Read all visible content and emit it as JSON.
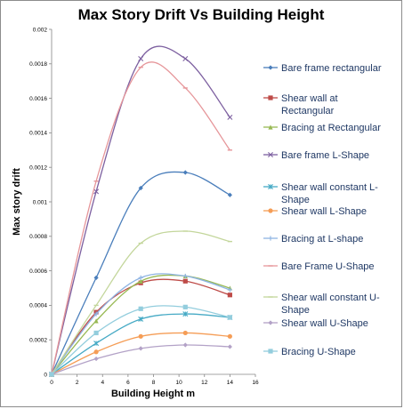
{
  "chart_data": {
    "type": "scatter",
    "title": "Max Story Drift Vs Building Height",
    "xlabel": "Building Height m",
    "ylabel": "Max story drift",
    "xlim": [
      0,
      16
    ],
    "ylim": [
      0,
      0.002
    ],
    "x_ticks": [
      "0",
      "2",
      "4",
      "6",
      "8",
      "10",
      "12",
      "14",
      "16"
    ],
    "y_ticks": [
      "0",
      "0.0002",
      "0.0004",
      "0.0006",
      "0.0008",
      "0.001",
      "0.0012",
      "0.0014",
      "0.0016",
      "0.0018",
      "0.002"
    ],
    "x_tick_values": [
      0,
      2,
      4,
      6,
      8,
      10,
      12,
      14,
      16
    ],
    "y_tick_values": [
      0,
      0.0002,
      0.0004,
      0.0006,
      0.0008,
      0.001,
      0.0012,
      0.0014,
      0.0016,
      0.0018,
      0.002
    ],
    "smooth_lines": true,
    "legend_position": "right",
    "x": [
      0,
      3.5,
      7,
      10.5,
      14
    ],
    "series": [
      {
        "name": "Bare frame rectangular",
        "color": "#4a7ebb",
        "marker": "diamond",
        "values": [
          0,
          0.00056,
          0.00108,
          0.00117,
          0.00104
        ]
      },
      {
        "name": "Shear wall at Rectangular",
        "color": "#be4b48",
        "marker": "square",
        "values": [
          0,
          0.00036,
          0.00053,
          0.00054,
          0.00046
        ]
      },
      {
        "name": "Bracing at Rectangular",
        "color": "#98b954",
        "marker": "triangle",
        "values": [
          0,
          0.00031,
          0.00054,
          0.00057,
          0.0005
        ]
      },
      {
        "name": "Bare frame L-Shape",
        "color": "#7d60a0",
        "marker": "x",
        "values": [
          0,
          0.00106,
          0.00183,
          0.00183,
          0.00149
        ]
      },
      {
        "name": "Shear wall constant L-Shape",
        "color": "#46aac5",
        "marker": "star",
        "values": [
          0,
          0.00018,
          0.00032,
          0.00035,
          0.00033
        ]
      },
      {
        "name": "Shear wall L-Shape",
        "color": "#f59d56",
        "marker": "circle",
        "values": [
          0,
          0.00013,
          0.00022,
          0.00024,
          0.00022
        ]
      },
      {
        "name": "Bracing at L-shape",
        "color": "#8eb4e3",
        "marker": "plus",
        "values": [
          0,
          0.00035,
          0.00056,
          0.00057,
          0.00049
        ]
      },
      {
        "name": "Bare Frame U-Shape",
        "color": "#e6969a",
        "marker": "dash",
        "values": [
          0,
          0.00112,
          0.00178,
          0.00166,
          0.0013
        ]
      },
      {
        "name": "Shear wall constant U-Shape",
        "color": "#c3d69b",
        "marker": "dash",
        "values": [
          0,
          0.0004,
          0.00076,
          0.00083,
          0.00077
        ]
      },
      {
        "name": "Shear wall U-Shape",
        "color": "#b3a2c7",
        "marker": "diamond",
        "values": [
          0,
          9e-05,
          0.00015,
          0.00017,
          0.00016
        ]
      },
      {
        "name": "Bracing U-Shape",
        "color": "#93cddd",
        "marker": "square",
        "values": [
          0,
          0.00024,
          0.00038,
          0.00039,
          0.00033
        ]
      }
    ]
  },
  "legend": [
    {
      "lines": [
        "Bare frame rectangular"
      ]
    },
    {
      "lines": [
        "Shear wall at",
        "Rectangular"
      ]
    },
    {
      "lines": [
        "Bracing at Rectangular"
      ]
    },
    {
      "lines": [
        "Bare frame L-Shape"
      ]
    },
    {
      "lines": [
        "Shear wall constant L-",
        "Shape"
      ]
    },
    {
      "lines": [
        "Shear wall L-Shape"
      ]
    },
    {
      "lines": [
        "Bracing at L-shape"
      ]
    },
    {
      "lines": [
        "Bare Frame U-Shape"
      ]
    },
    {
      "lines": [
        "Shear wall constant U-",
        "Shape"
      ]
    },
    {
      "lines": [
        "Shear wall U-Shape"
      ]
    },
    {
      "lines": [
        "Bracing U-Shape"
      ]
    }
  ]
}
